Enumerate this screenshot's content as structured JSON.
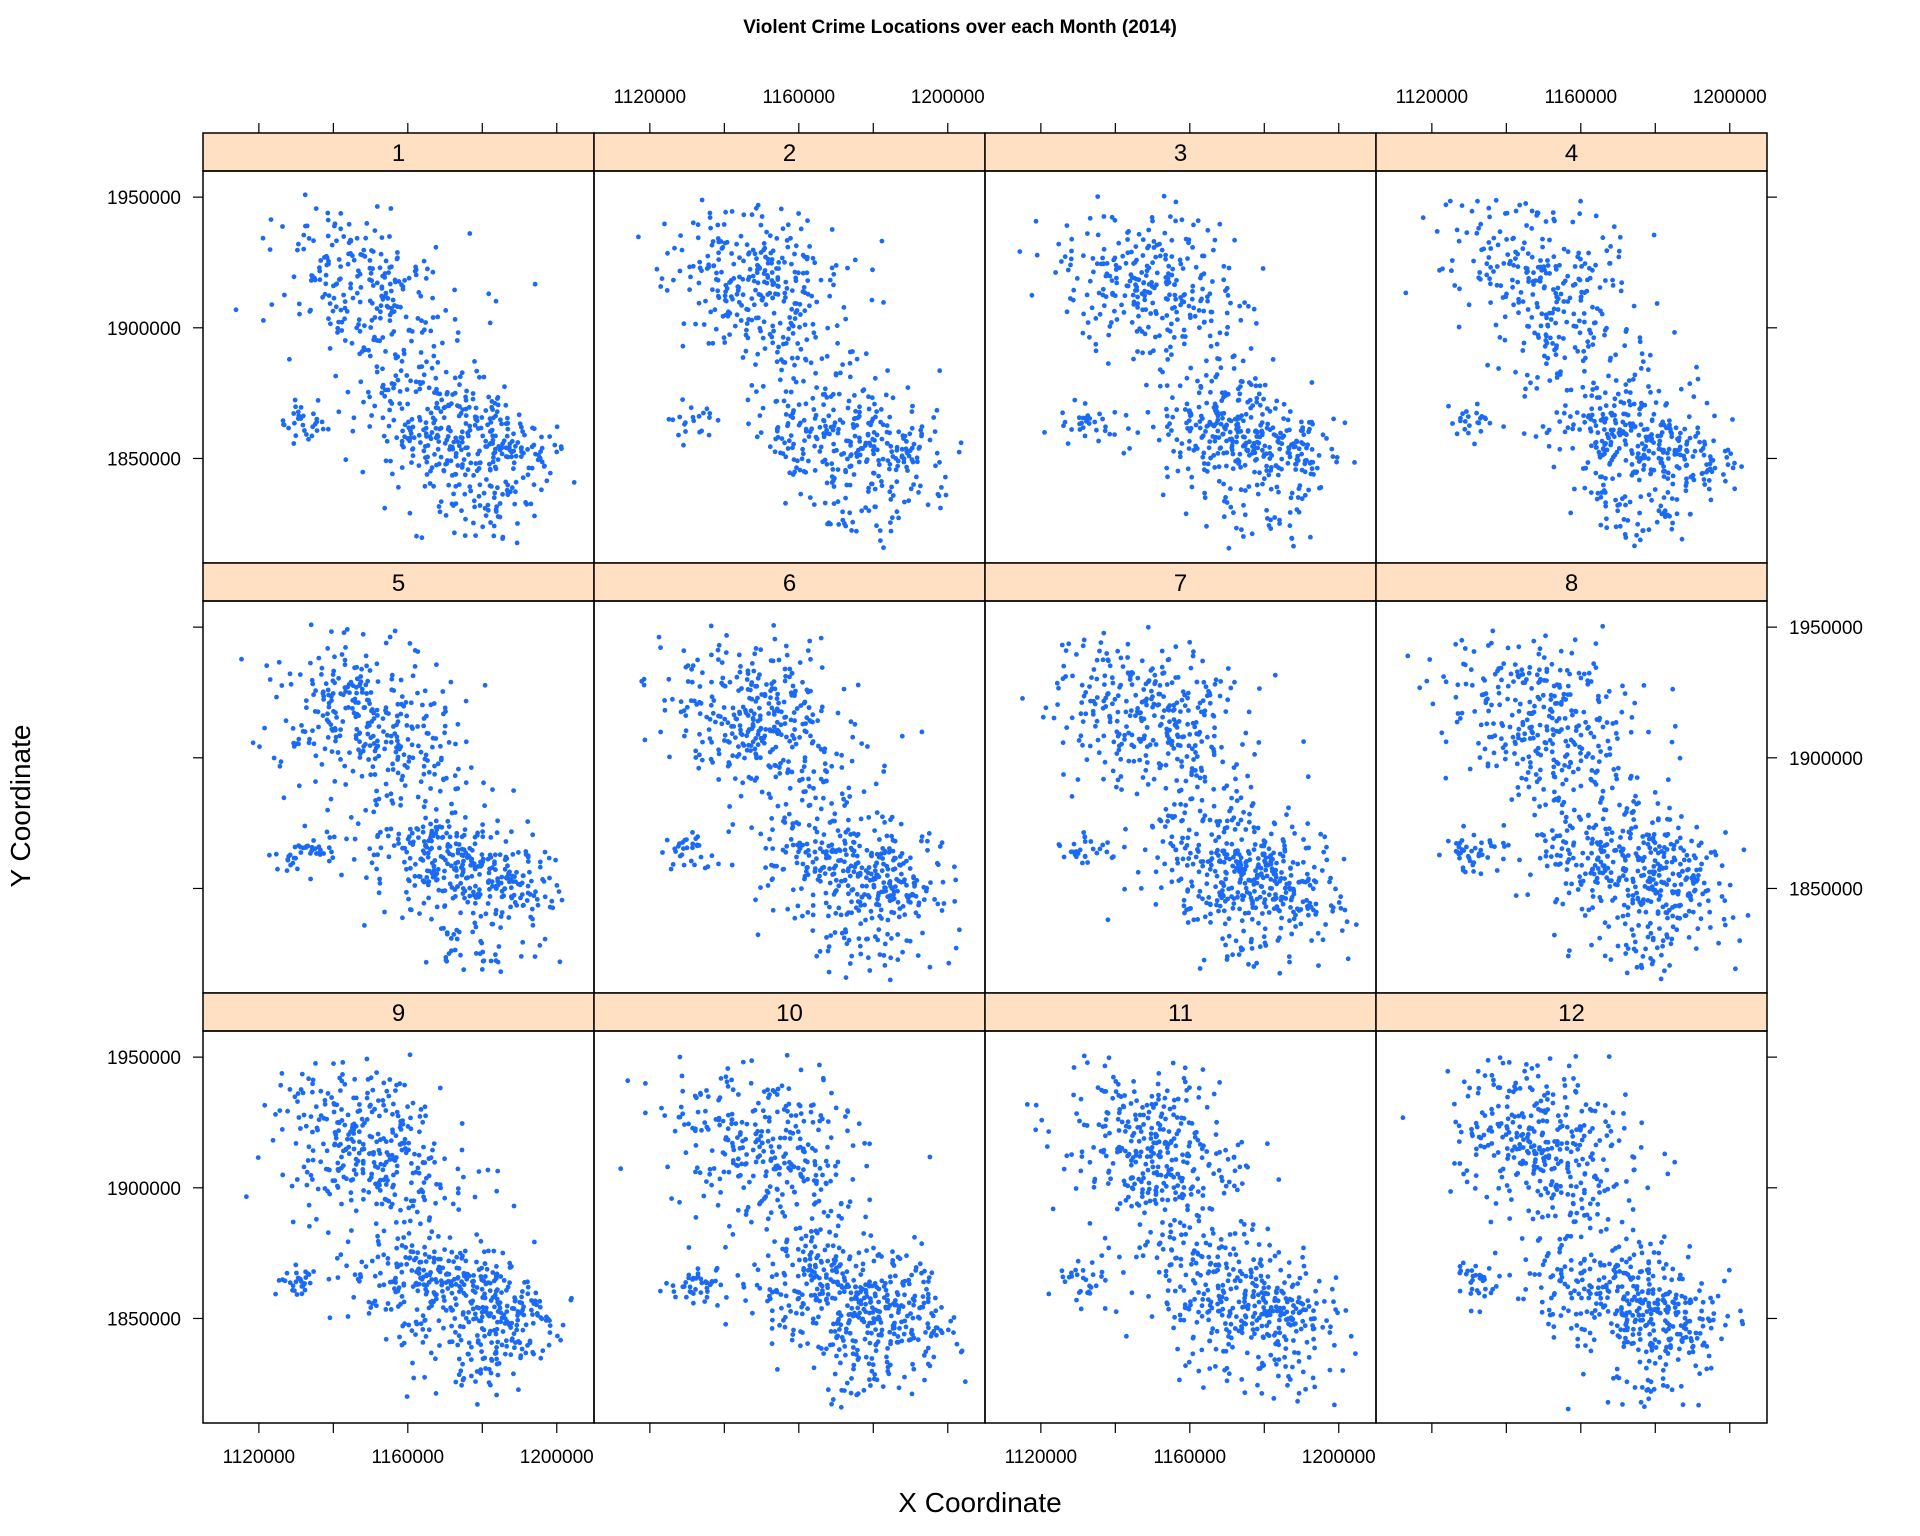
{
  "chart_data": {
    "type": "scatter",
    "title": "Violent Crime Locations over each Month (2014)",
    "xlabel": "X Coordinate",
    "ylabel": "Y Coordinate",
    "xlim": [
      1105000,
      1210000
    ],
    "ylim": [
      1810000,
      1960000
    ],
    "x_ticks": [
      1120000,
      1160000,
      1200000
    ],
    "x_tick_minor": [
      1120000,
      1140000,
      1160000,
      1180000,
      1200000
    ],
    "y_ticks": [
      1850000,
      1900000,
      1950000
    ],
    "layout": "4 columns x 3 rows",
    "strip_color": "#ffe0c2",
    "point_color": "#1a6af5",
    "panels": [
      {
        "label": "1",
        "seed": 101,
        "count": 680
      },
      {
        "label": "2",
        "seed": 202,
        "count": 660
      },
      {
        "label": "3",
        "seed": 303,
        "count": 700
      },
      {
        "label": "4",
        "seed": 404,
        "count": 680
      },
      {
        "label": "5",
        "seed": 505,
        "count": 760
      },
      {
        "label": "6",
        "seed": 606,
        "count": 780
      },
      {
        "label": "7",
        "seed": 707,
        "count": 800
      },
      {
        "label": "8",
        "seed": 808,
        "count": 800
      },
      {
        "label": "9",
        "seed": 909,
        "count": 820
      },
      {
        "label": "10",
        "seed": 1010,
        "count": 820
      },
      {
        "label": "11",
        "seed": 1111,
        "count": 760
      },
      {
        "label": "12",
        "seed": 1212,
        "count": 780
      }
    ],
    "clusters": [
      {
        "cx": 1150000,
        "cy": 1915000,
        "sx": 13000,
        "sy": 17000,
        "rho": -0.35,
        "w": 0.42
      },
      {
        "cx": 1172000,
        "cy": 1858000,
        "sx": 12000,
        "sy": 13000,
        "rho": -0.3,
        "w": 0.4
      },
      {
        "cx": 1188000,
        "cy": 1852000,
        "sx": 7000,
        "sy": 8000,
        "rho": -0.2,
        "w": 0.1
      },
      {
        "cx": 1132000,
        "cy": 1864000,
        "sx": 4000,
        "sy": 4000,
        "rho": 0.0,
        "w": 0.04
      },
      {
        "cx": 1178000,
        "cy": 1828000,
        "sx": 8000,
        "sy": 6000,
        "rho": 0.0,
        "w": 0.04
      }
    ]
  }
}
